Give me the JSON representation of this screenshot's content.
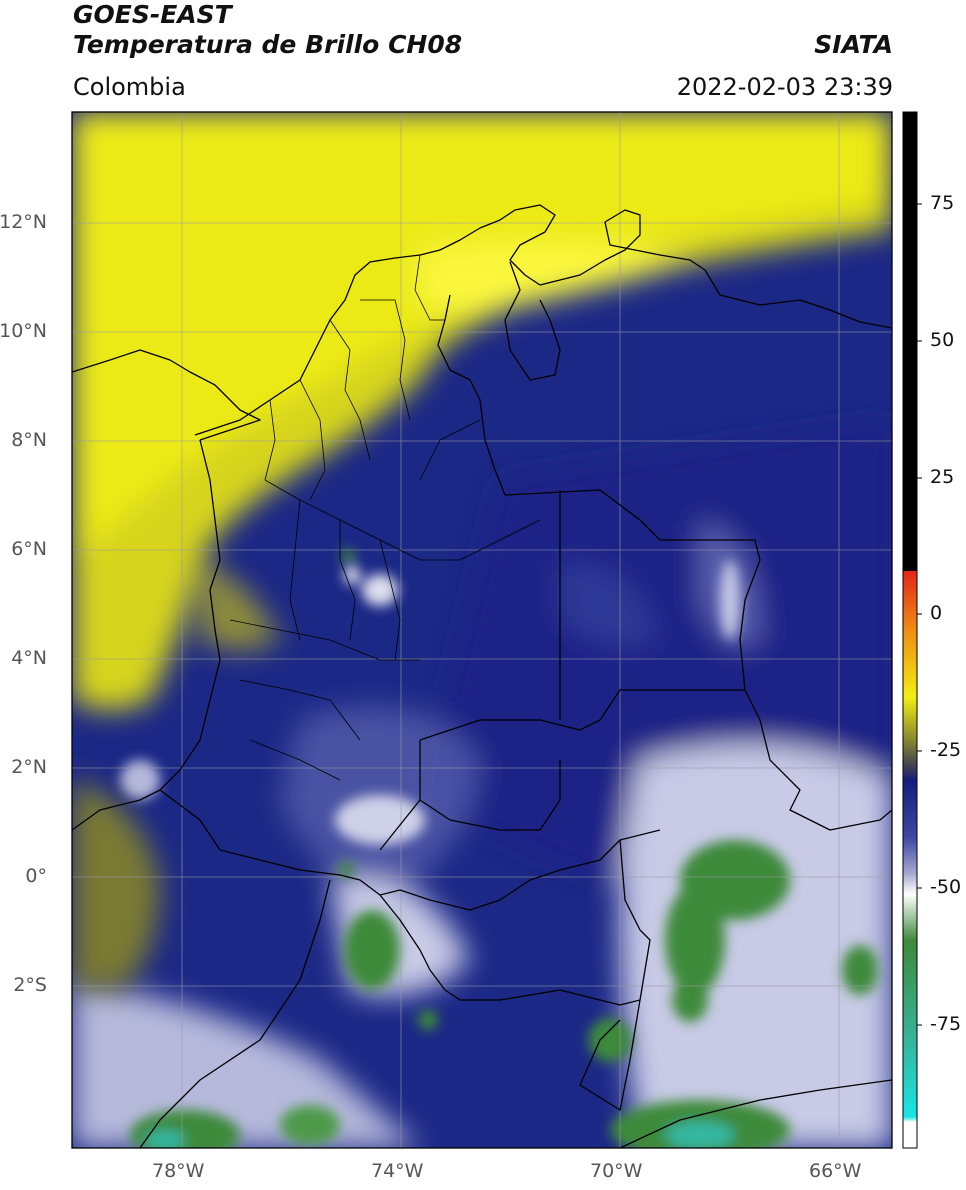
{
  "header": {
    "satellite": "GOES-EAST",
    "product": "Temperatura de Brillo CH08",
    "region": "Colombia",
    "agency": "SIATA",
    "datetime": "2022-02-03 23:39"
  },
  "map": {
    "lat_ticks": [
      "12°N",
      "10°N",
      "8°N",
      "6°N",
      "4°N",
      "2°N",
      "0°",
      "2°S"
    ],
    "lon_ticks": [
      "78°W",
      "74°W",
      "70°W",
      "66°W"
    ]
  },
  "colorbar": {
    "ticks": [
      "75",
      "50",
      "25",
      "0",
      "-25",
      "-50",
      "-75"
    ],
    "colors": {
      "black": "#000000",
      "red": "#e3261b",
      "orange": "#f08c14",
      "yellow": "#f2ee12",
      "olive": "#8a8a2e",
      "navy": "#141e7e",
      "lavender": "#a6a8d2",
      "white": "#ffffff",
      "green": "#3e8a3a",
      "teal": "#35b7a0",
      "cyan": "#17e6e6"
    }
  }
}
